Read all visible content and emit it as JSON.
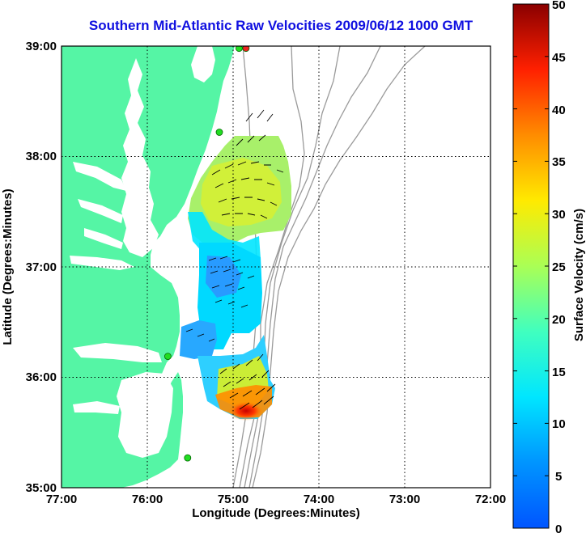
{
  "title": "Southern Mid-Atlantic Raw Velocities 2009/06/12 1000 GMT",
  "x_axis": {
    "label": "Longitude (Degrees:Minutes)",
    "ticks": [
      "77:00",
      "76:00",
      "75:00",
      "74:00",
      "73:00",
      "72:00"
    ]
  },
  "y_axis": {
    "label": "Latitude (Degrees:Minutes)",
    "ticks": [
      "39:00",
      "38:00",
      "37:00",
      "36:00",
      "35:00"
    ]
  },
  "colorbar": {
    "label": "Surface Velocity (cm/s)",
    "ticks": [
      "50",
      "45",
      "40",
      "35",
      "30",
      "25",
      "20",
      "15",
      "10",
      "5",
      "0"
    ],
    "min": 0,
    "max": 50
  },
  "colors": {
    "title": "#1010e0",
    "land": "#55f5a5",
    "station": "#22dd22",
    "station_highlight": "#ee2222",
    "bathymetry": "#9a9a9a",
    "grid": "#000000"
  },
  "chart_data": {
    "type": "heatmap",
    "projection": "lon-lat",
    "xlim": [
      -77,
      -72
    ],
    "ylim": [
      35,
      39
    ],
    "grid": true,
    "description_of_variable": "surface current speed with direction vectors",
    "stations": [
      {
        "lon": -74.85,
        "lat": 38.98,
        "color": "red"
      },
      {
        "lon": -74.93,
        "lat": 38.98,
        "color": "green"
      },
      {
        "lon": -75.16,
        "lat": 38.22,
        "color": "green"
      },
      {
        "lon": -75.76,
        "lat": 36.19,
        "color": "green"
      },
      {
        "lon": -75.53,
        "lat": 35.27,
        "color": "green"
      }
    ],
    "velocity_regions": [
      {
        "lon_range": [
          -75.45,
          -74.4
        ],
        "lat_range": [
          37.3,
          38.25
        ],
        "speed_cm_s": [
          15,
          28
        ]
      },
      {
        "lon_range": [
          -75.4,
          -74.95
        ],
        "lat_range": [
          36.55,
          37.3
        ],
        "speed_cm_s": [
          5,
          12
        ]
      },
      {
        "lon_range": [
          -75.7,
          -75.3
        ],
        "lat_range": [
          36.1,
          36.55
        ],
        "speed_cm_s": [
          8,
          12
        ]
      },
      {
        "lon_range": [
          -75.25,
          -74.6
        ],
        "lat_range": [
          35.7,
          36.3
        ],
        "speed_cm_s": [
          18,
          50
        ]
      }
    ]
  }
}
